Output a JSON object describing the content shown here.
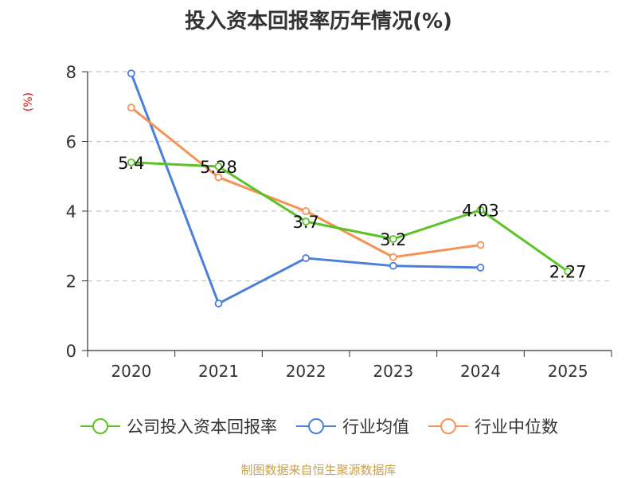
{
  "chart_data": {
    "type": "line",
    "title": "投入资本回报率历年情况(%)",
    "ylabel": "(%)",
    "xlabel": "",
    "categories": [
      "2020",
      "2021",
      "2022",
      "2023",
      "2024",
      "2025"
    ],
    "ylim": [
      0,
      8
    ],
    "yticks": [
      0,
      2,
      4,
      6,
      8
    ],
    "grid": "horizontal dashed",
    "legend_position": "bottom",
    "series": [
      {
        "name": "公司投入资本回报率",
        "color": "#5bc227",
        "values": [
          5.4,
          5.28,
          3.7,
          3.2,
          4.03,
          2.27
        ],
        "labels": [
          "5.4",
          "5.28",
          "3.7",
          "3.2",
          "4.03",
          "2.27"
        ]
      },
      {
        "name": "行业均值",
        "color": "#4c7fdc",
        "values": [
          7.95,
          1.35,
          2.65,
          2.43,
          2.38,
          null
        ]
      },
      {
        "name": "行业中位数",
        "color": "#f59354",
        "values": [
          6.97,
          4.97,
          4.0,
          2.68,
          3.03,
          null
        ]
      }
    ]
  },
  "y_unit_color": "#dd1111",
  "source_text": "制图数据来自恒生聚源数据库",
  "source_color": "#c8a24c"
}
